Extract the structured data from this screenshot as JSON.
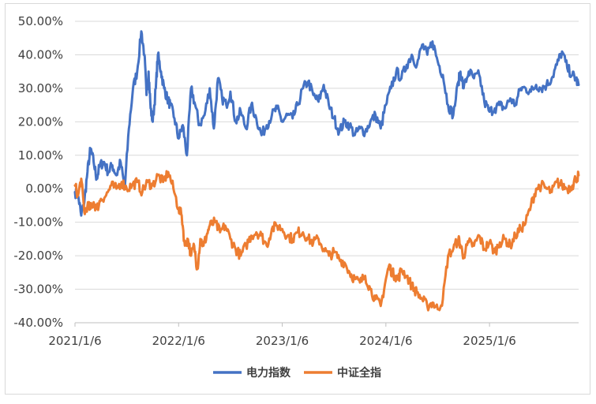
{
  "chart_data": {
    "type": "line",
    "title": "",
    "xlabel": "",
    "ylabel": "",
    "ylim": [
      -40,
      50
    ],
    "y_ticks": [
      "50.00%",
      "40.00%",
      "30.00%",
      "20.00%",
      "10.00%",
      "0.00%",
      "-10.00%",
      "-20.00%",
      "-30.00%",
      "-40.00%"
    ],
    "y_tick_values": [
      50,
      40,
      30,
      20,
      10,
      0,
      -10,
      -20,
      -30,
      -40
    ],
    "x_ticks": [
      "2021/1/6",
      "2022/1/6",
      "2023/1/6",
      "2024/1/6",
      "2025/1/6"
    ],
    "x_tick_values": [
      2021.0,
      2022.0,
      2023.0,
      2024.0,
      2025.0
    ],
    "xlim": [
      2021.0,
      2025.86
    ],
    "grid": "horizontal",
    "legend": "bottom",
    "series": [
      {
        "name": "电力指数",
        "color": "#4472C4",
        "x": [
          2021.0,
          2021.03,
          2021.06,
          2021.09,
          2021.12,
          2021.15,
          2021.18,
          2021.21,
          2021.24,
          2021.28,
          2021.32,
          2021.36,
          2021.4,
          2021.44,
          2021.48,
          2021.52,
          2021.56,
          2021.6,
          2021.64,
          2021.67,
          2021.69,
          2021.71,
          2021.73,
          2021.75,
          2021.78,
          2021.8,
          2021.83,
          2021.86,
          2021.89,
          2021.92,
          2021.96,
          2022.0,
          2022.04,
          2022.08,
          2022.12,
          2022.16,
          2022.2,
          2022.25,
          2022.3,
          2022.34,
          2022.38,
          2022.42,
          2022.46,
          2022.5,
          2022.55,
          2022.6,
          2022.65,
          2022.7,
          2022.75,
          2022.8,
          2022.85,
          2022.9,
          2022.95,
          2023.0,
          2023.05,
          2023.1,
          2023.15,
          2023.2,
          2023.25,
          2023.3,
          2023.35,
          2023.4,
          2023.45,
          2023.5,
          2023.55,
          2023.6,
          2023.65,
          2023.7,
          2023.75,
          2023.8,
          2023.85,
          2023.9,
          2023.95,
          2024.0,
          2024.05,
          2024.1,
          2024.15,
          2024.2,
          2024.25,
          2024.3,
          2024.35,
          2024.4,
          2024.45,
          2024.5,
          2024.55,
          2024.6,
          2024.65,
          2024.7,
          2024.72,
          2024.75,
          2024.8,
          2024.85,
          2024.9,
          2024.95,
          2025.0,
          2025.05,
          2025.1,
          2025.15,
          2025.2,
          2025.25,
          2025.3,
          2025.35,
          2025.4,
          2025.45,
          2025.5,
          2025.55,
          2025.6,
          2025.65,
          2025.7,
          2025.75,
          2025.8,
          2025.83,
          2025.86
        ],
        "values": [
          -1,
          -2,
          -8,
          -4,
          5,
          12,
          8,
          3,
          7,
          8,
          5,
          7,
          4,
          8,
          0,
          18,
          30,
          35,
          47,
          40,
          28,
          35,
          24,
          20,
          30,
          40,
          35,
          30,
          27,
          25,
          21,
          15,
          19,
          10,
          30,
          25,
          19,
          22,
          30,
          18,
          33,
          27,
          25,
          29,
          20,
          23,
          18,
          25,
          21,
          16,
          19,
          22,
          24,
          20,
          22,
          21,
          25,
          30,
          32,
          28,
          26,
          31,
          25,
          21,
          17,
          20,
          19,
          16,
          18,
          17,
          20,
          22,
          18,
          25,
          30,
          35,
          33,
          37,
          40,
          37,
          43,
          40,
          44,
          38,
          34,
          25,
          22,
          32,
          35,
          30,
          35,
          33,
          34,
          26,
          23,
          24,
          25,
          24,
          27,
          25,
          30,
          30,
          29,
          31,
          30,
          31,
          33,
          37,
          41,
          36,
          34,
          33,
          31
        ]
      },
      {
        "name": "中证全指",
        "color": "#ED7D31",
        "x": [
          2021.0,
          2021.03,
          2021.06,
          2021.09,
          2021.12,
          2021.15,
          2021.18,
          2021.21,
          2021.25,
          2021.3,
          2021.35,
          2021.4,
          2021.45,
          2021.5,
          2021.55,
          2021.6,
          2021.65,
          2021.7,
          2021.75,
          2021.8,
          2021.85,
          2021.9,
          2021.95,
          2022.0,
          2022.03,
          2022.06,
          2022.09,
          2022.12,
          2022.15,
          2022.18,
          2022.21,
          2022.24,
          2022.27,
          2022.3,
          2022.35,
          2022.4,
          2022.45,
          2022.5,
          2022.55,
          2022.6,
          2022.65,
          2022.7,
          2022.75,
          2022.8,
          2022.85,
          2022.9,
          2022.95,
          2023.0,
          2023.05,
          2023.1,
          2023.15,
          2023.2,
          2023.25,
          2023.3,
          2023.35,
          2023.4,
          2023.45,
          2023.5,
          2023.55,
          2023.6,
          2023.65,
          2023.7,
          2023.75,
          2023.8,
          2023.85,
          2023.9,
          2023.95,
          2024.0,
          2024.03,
          2024.06,
          2024.09,
          2024.12,
          2024.15,
          2024.2,
          2024.25,
          2024.3,
          2024.35,
          2024.4,
          2024.45,
          2024.5,
          2024.55,
          2024.6,
          2024.65,
          2024.7,
          2024.72,
          2024.75,
          2024.8,
          2024.85,
          2024.9,
          2024.95,
          2025.0,
          2025.05,
          2025.1,
          2025.15,
          2025.2,
          2025.25,
          2025.3,
          2025.35,
          2025.4,
          2025.45,
          2025.5,
          2025.55,
          2025.6,
          2025.65,
          2025.7,
          2025.75,
          2025.8,
          2025.83,
          2025.86
        ],
        "values": [
          1,
          -2,
          3,
          -7,
          -5,
          -6,
          -4,
          -6,
          -3,
          -2,
          1,
          0,
          2,
          0,
          1,
          2,
          -1,
          2,
          1,
          4,
          2,
          5,
          0,
          -6,
          -8,
          -17,
          -15,
          -20,
          -17,
          -24,
          -15,
          -17,
          -14,
          -11,
          -10,
          -13,
          -11,
          -15,
          -18,
          -20,
          -17,
          -14,
          -13,
          -14,
          -17,
          -12,
          -11,
          -12,
          -14,
          -15,
          -13,
          -13,
          -15,
          -16,
          -15,
          -18,
          -20,
          -19,
          -21,
          -22,
          -25,
          -27,
          -28,
          -26,
          -30,
          -33,
          -35,
          -27,
          -23,
          -25,
          -26,
          -27,
          -24,
          -26,
          -29,
          -31,
          -33,
          -35,
          -34,
          -36,
          -33,
          -20,
          -18,
          -15,
          -17,
          -20,
          -16,
          -17,
          -14,
          -18,
          -16,
          -19,
          -16,
          -15,
          -17,
          -14,
          -12,
          -10,
          -5,
          0,
          1,
          0,
          -1,
          2,
          1,
          0,
          1,
          3,
          4
        ]
      }
    ]
  }
}
